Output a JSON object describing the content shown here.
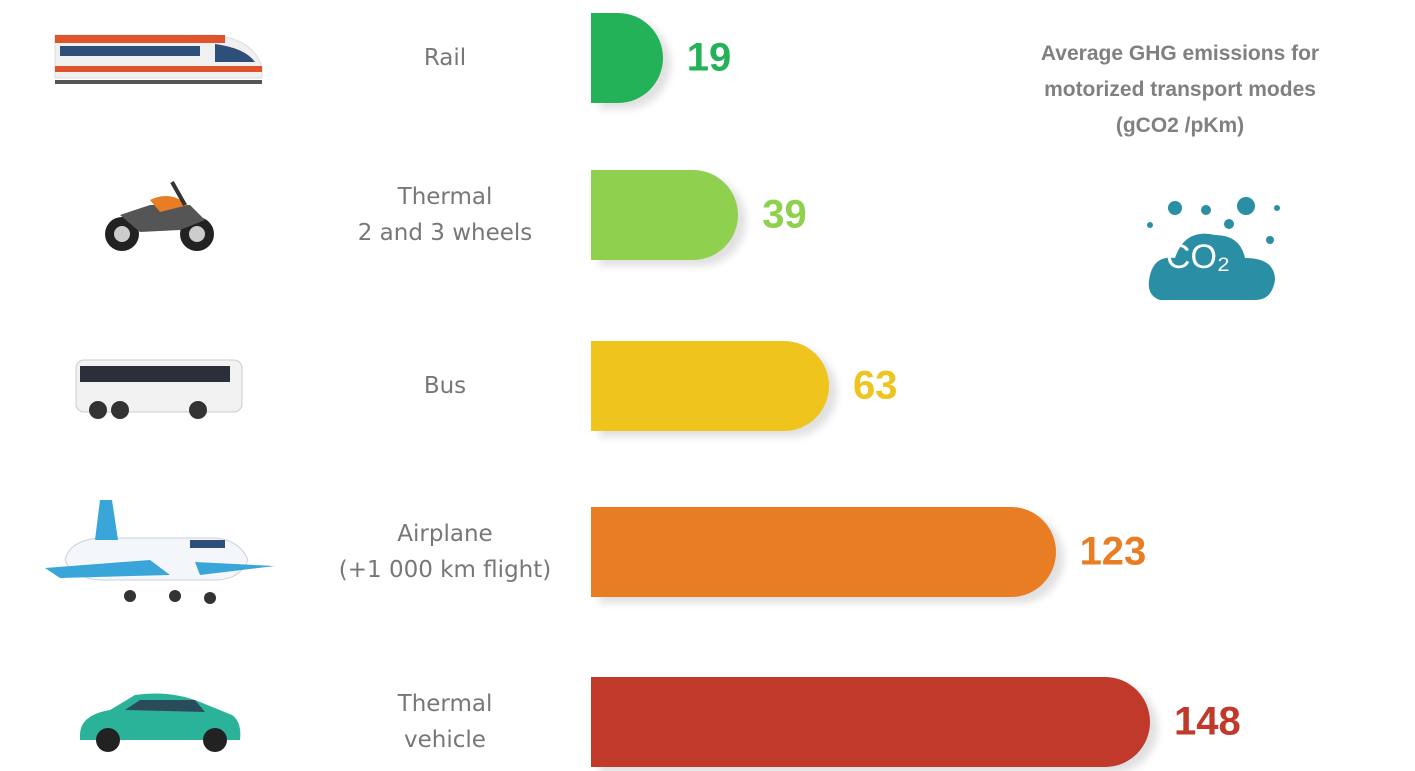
{
  "chart_data": {
    "type": "bar",
    "orientation": "horizontal",
    "title": "Average GHG emissions for\nmotorized transport modes\n(gCO2 /pKm)",
    "icon_text": "CO₂",
    "categories": [
      "Rail",
      "Thermal\n2 and 3 wheels",
      "Bus",
      "Airplane\n(+1 000 km flight)",
      "Thermal\nvehicle"
    ],
    "values": [
      19,
      39,
      63,
      123,
      148
    ],
    "colors": [
      "#23b257",
      "#8fd14f",
      "#efc41d",
      "#e87d24",
      "#c0392b"
    ]
  }
}
